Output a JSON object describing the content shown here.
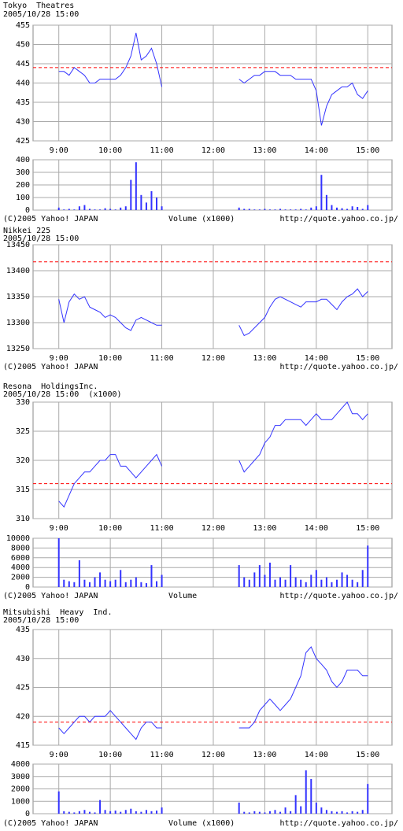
{
  "chart_data": [
    {
      "type": "line",
      "title": "Tokyo  Theatres",
      "subtitle": "2005/10/28 15:00",
      "color": "#3333ff",
      "x": [
        9,
        9.1,
        9.2,
        9.3,
        9.4,
        9.5,
        9.6,
        9.7,
        9.8,
        9.9,
        10,
        10.1,
        10.2,
        10.3,
        10.4,
        10.5,
        10.6,
        10.7,
        10.8,
        10.9,
        11,
        12,
        12.5,
        12.6,
        12.7,
        12.8,
        12.9,
        13,
        13.1,
        13.2,
        13.3,
        13.4,
        13.5,
        13.6,
        13.7,
        13.8,
        13.9,
        14,
        14.1,
        14.2,
        14.3,
        14.4,
        14.5,
        14.6,
        14.7,
        14.8,
        14.9,
        15
      ],
      "values": [
        443,
        443,
        442,
        444,
        443,
        442,
        440,
        440,
        441,
        441,
        441,
        441,
        442,
        444,
        447,
        453,
        446,
        447,
        449,
        445,
        439,
        null,
        441,
        440,
        441,
        442,
        442,
        443,
        443,
        443,
        442,
        442,
        442,
        441,
        441,
        441,
        441,
        438,
        429,
        434,
        437,
        438,
        439,
        439,
        440,
        437,
        436,
        438
      ],
      "reference_line": 444,
      "reference_color": "#ff0000",
      "xlim": [
        8.5,
        15.47
      ],
      "xticks": [
        {
          "value": 9,
          "label": "9:00"
        },
        {
          "value": 10,
          "label": "10:00"
        },
        {
          "value": 11,
          "label": "11:00"
        },
        {
          "value": 12,
          "label": "12:00"
        },
        {
          "value": 13,
          "label": "13:00"
        },
        {
          "value": 14,
          "label": "14:00"
        },
        {
          "value": 15,
          "label": "15:00"
        }
      ],
      "ylim": [
        425,
        455
      ],
      "yticks": [
        425,
        430,
        435,
        440,
        445,
        450,
        455
      ],
      "grid": true,
      "volume": {
        "values": [
          20,
          5,
          10,
          5,
          30,
          40,
          10,
          5,
          5,
          15,
          10,
          5,
          20,
          30,
          240,
          380,
          120,
          60,
          150,
          100,
          30,
          null,
          20,
          10,
          10,
          5,
          5,
          10,
          5,
          5,
          10,
          5,
          5,
          5,
          10,
          5,
          20,
          30,
          280,
          120,
          40,
          20,
          15,
          10,
          30,
          25,
          10,
          40
        ],
        "ylim": [
          0,
          400
        ],
        "yticks": [
          0,
          100,
          200,
          300,
          400
        ]
      },
      "copyright": "(C)2005 Yahoo! JAPAN",
      "volume_label": "Volume (x1000)",
      "url": "http://quote.yahoo.co.jp/"
    },
    {
      "type": "line",
      "title": "Nikkei 225",
      "subtitle": "2005/10/28 15:00",
      "color": "#3333ff",
      "x": [
        9,
        9.1,
        9.2,
        9.3,
        9.4,
        9.5,
        9.6,
        9.7,
        9.8,
        9.9,
        10,
        10.1,
        10.2,
        10.3,
        10.4,
        10.5,
        10.6,
        10.7,
        10.8,
        10.9,
        11,
        12,
        12.5,
        12.6,
        12.7,
        12.8,
        12.9,
        13,
        13.1,
        13.2,
        13.3,
        13.4,
        13.5,
        13.6,
        13.7,
        13.8,
        13.9,
        14,
        14.1,
        14.2,
        14.3,
        14.4,
        14.5,
        14.6,
        14.7,
        14.8,
        14.9,
        15
      ],
      "values": [
        13345,
        13300,
        13340,
        13355,
        13345,
        13350,
        13330,
        13325,
        13320,
        13310,
        13315,
        13310,
        13300,
        13290,
        13285,
        13305,
        13310,
        13305,
        13300,
        13295,
        13295,
        null,
        13295,
        13275,
        13280,
        13290,
        13300,
        13310,
        13330,
        13345,
        13350,
        13345,
        13340,
        13335,
        13330,
        13340,
        13340,
        13340,
        13345,
        13345,
        13335,
        13325,
        13340,
        13350,
        13355,
        13365,
        13350,
        13360
      ],
      "reference_line": 13417,
      "reference_color": "#ff0000",
      "xlim": [
        8.5,
        15.47
      ],
      "xticks": [
        {
          "value": 9,
          "label": "9:00"
        },
        {
          "value": 10,
          "label": "10:00"
        },
        {
          "value": 11,
          "label": "11:00"
        },
        {
          "value": 12,
          "label": "12:00"
        },
        {
          "value": 13,
          "label": "13:00"
        },
        {
          "value": 14,
          "label": "14:00"
        },
        {
          "value": 15,
          "label": "15:00"
        }
      ],
      "ylim": [
        13250,
        13450
      ],
      "yticks": [
        13250,
        13300,
        13350,
        13400,
        13450
      ],
      "grid": true,
      "copyright": "(C)2005 Yahoo! JAPAN",
      "url": "http://quote.yahoo.co.jp/"
    },
    {
      "type": "line",
      "title": "Resona  HoldingsInc.",
      "subtitle": "2005/10/28 15:00  (x1000)",
      "color": "#3333ff",
      "x": [
        9,
        9.1,
        9.2,
        9.3,
        9.4,
        9.5,
        9.6,
        9.7,
        9.8,
        9.9,
        10,
        10.1,
        10.2,
        10.3,
        10.4,
        10.5,
        10.6,
        10.7,
        10.8,
        10.9,
        11,
        12,
        12.5,
        12.6,
        12.7,
        12.8,
        12.9,
        13,
        13.1,
        13.2,
        13.3,
        13.4,
        13.5,
        13.6,
        13.7,
        13.8,
        13.9,
        14,
        14.1,
        14.2,
        14.3,
        14.4,
        14.5,
        14.6,
        14.7,
        14.8,
        14.9,
        15
      ],
      "values": [
        313,
        312,
        314,
        316,
        317,
        318,
        318,
        319,
        320,
        320,
        321,
        321,
        319,
        319,
        318,
        317,
        318,
        319,
        320,
        321,
        319,
        null,
        320,
        318,
        319,
        320,
        321,
        323,
        324,
        326,
        326,
        327,
        327,
        327,
        327,
        326,
        327,
        328,
        327,
        327,
        327,
        328,
        329,
        330,
        328,
        328,
        327,
        328
      ],
      "reference_line": 316,
      "reference_color": "#ff0000",
      "xlim": [
        8.5,
        15.47
      ],
      "xticks": [
        {
          "value": 9,
          "label": "9:00"
        },
        {
          "value": 10,
          "label": "10:00"
        },
        {
          "value": 11,
          "label": "11:00"
        },
        {
          "value": 12,
          "label": "12:00"
        },
        {
          "value": 13,
          "label": "13:00"
        },
        {
          "value": 14,
          "label": "14:00"
        },
        {
          "value": 15,
          "label": "15:00"
        }
      ],
      "ylim": [
        310,
        330
      ],
      "yticks": [
        310,
        315,
        320,
        325,
        330
      ],
      "grid": true,
      "volume": {
        "values": [
          10000,
          1500,
          1200,
          1000,
          5500,
          1500,
          1000,
          2000,
          3000,
          1500,
          1200,
          1500,
          3500,
          1000,
          1500,
          2000,
          1000,
          800,
          4500,
          1200,
          2500,
          null,
          4500,
          2000,
          1500,
          3000,
          4500,
          2500,
          5000,
          1500,
          2000,
          1500,
          4500,
          2000,
          1500,
          1000,
          2500,
          3500,
          1500,
          2000,
          1000,
          1500,
          3000,
          2500,
          1500,
          1000,
          3500,
          8500
        ],
        "ylim": [
          0,
          10000
        ],
        "yticks": [
          0,
          2000,
          4000,
          6000,
          8000,
          10000
        ]
      },
      "copyright": "(C)2005 Yahoo! JAPAN",
      "volume_label": "Volume",
      "url": "http://quote.yahoo.co.jp/"
    },
    {
      "type": "line",
      "title": "Mitsubishi  Heavy  Ind.",
      "subtitle": "2005/10/28 15:00",
      "color": "#3333ff",
      "x": [
        9,
        9.1,
        9.2,
        9.3,
        9.4,
        9.5,
        9.6,
        9.7,
        9.8,
        9.9,
        10,
        10.1,
        10.2,
        10.3,
        10.4,
        10.5,
        10.6,
        10.7,
        10.8,
        10.9,
        11,
        12,
        12.5,
        12.6,
        12.7,
        12.8,
        12.9,
        13,
        13.1,
        13.2,
        13.3,
        13.4,
        13.5,
        13.6,
        13.7,
        13.8,
        13.9,
        14,
        14.1,
        14.2,
        14.3,
        14.4,
        14.5,
        14.6,
        14.7,
        14.8,
        14.9,
        15
      ],
      "values": [
        418,
        417,
        418,
        419,
        420,
        420,
        419,
        420,
        420,
        420,
        421,
        420,
        419,
        418,
        417,
        416,
        418,
        419,
        419,
        418,
        418,
        null,
        418,
        418,
        418,
        419,
        421,
        422,
        423,
        422,
        421,
        422,
        423,
        425,
        427,
        431,
        432,
        430,
        429,
        428,
        426,
        425,
        426,
        428,
        428,
        428,
        427,
        427
      ],
      "reference_line": 419,
      "reference_color": "#ff0000",
      "xlim": [
        8.5,
        15.47
      ],
      "xticks": [
        {
          "value": 9,
          "label": "9:00"
        },
        {
          "value": 10,
          "label": "10:00"
        },
        {
          "value": 11,
          "label": "11:00"
        },
        {
          "value": 12,
          "label": "12:00"
        },
        {
          "value": 13,
          "label": "13:00"
        },
        {
          "value": 14,
          "label": "14:00"
        },
        {
          "value": 15,
          "label": "15:00"
        }
      ],
      "ylim": [
        415,
        435
      ],
      "yticks": [
        415,
        420,
        425,
        430,
        435
      ],
      "grid": true,
      "volume": {
        "values": [
          1800,
          200,
          150,
          100,
          200,
          300,
          150,
          100,
          1100,
          300,
          200,
          250,
          150,
          300,
          400,
          200,
          150,
          300,
          200,
          250,
          500,
          null,
          900,
          150,
          100,
          200,
          150,
          100,
          200,
          300,
          150,
          500,
          200,
          1500,
          600,
          3500,
          2800,
          900,
          500,
          300,
          200,
          150,
          200,
          100,
          200,
          150,
          300,
          2400
        ],
        "ylim": [
          0,
          4000
        ],
        "yticks": [
          0,
          1000,
          2000,
          3000,
          4000
        ]
      },
      "copyright": "(C)2005 Yahoo! JAPAN",
      "volume_label": "Volume (x1000)",
      "url": "http://quote.yahoo.co.jp/"
    }
  ]
}
